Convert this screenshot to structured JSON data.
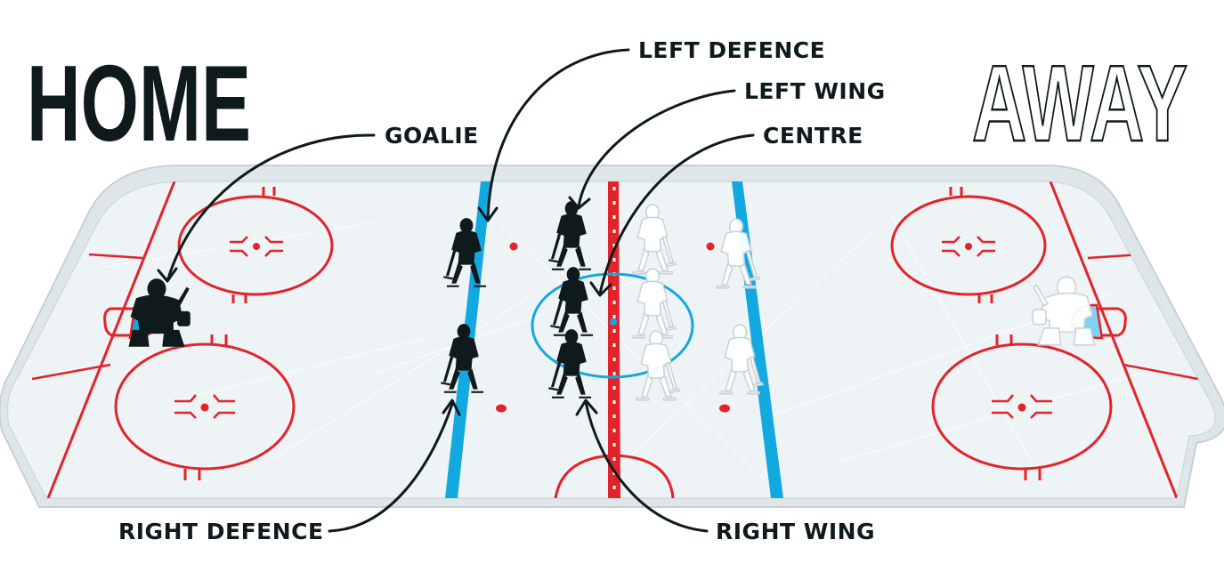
{
  "teams": {
    "home": "HOME",
    "away": "AWAY"
  },
  "labels": {
    "goalie": "GOALIE",
    "left_defence": "LEFT DEFENCE",
    "left_wing": "LEFT WING",
    "centre": "CENTRE",
    "right_defence": "RIGHT DEFENCE",
    "right_wing": "RIGHT WING"
  },
  "colors": {
    "ink": "#0f1a1c",
    "rink_red": "#e2232a",
    "rink_blue": "#12a8e0",
    "ice": "#eef3f6",
    "away_player": "#ffffff",
    "away_crease": "#7fd1ef"
  },
  "icons": {
    "player": "hockey-player-silhouette-icon",
    "goalie": "hockey-goalie-silhouette-icon"
  }
}
